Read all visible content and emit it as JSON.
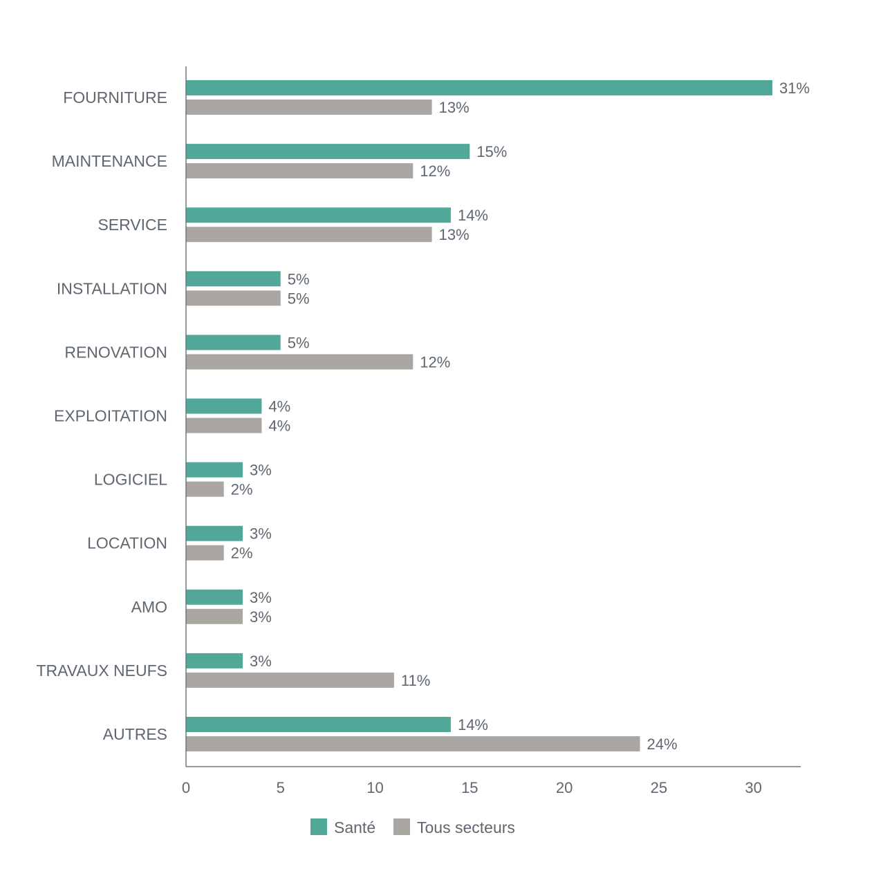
{
  "chart_data": {
    "type": "bar",
    "orientation": "horizontal",
    "title": "",
    "xlabel": "",
    "ylabel": "",
    "categories": [
      "FOURNITURE",
      "MAINTENANCE",
      "SERVICE",
      "INSTALLATION",
      "RENOVATION",
      "EXPLOITATION",
      "LOGICIEL",
      "LOCATION",
      "AMO",
      "TRAVAUX NEUFS",
      "AUTRES"
    ],
    "series": [
      {
        "name": "Santé",
        "color": "#52a898",
        "values": [
          31,
          15,
          14,
          5,
          5,
          4,
          3,
          3,
          3,
          3,
          14
        ],
        "labels": [
          "31%",
          "15%",
          "14%",
          "5%",
          "5%",
          "4%",
          "3%",
          "3%",
          "3%",
          "3%",
          "14%"
        ]
      },
      {
        "name": "Tous secteurs",
        "color": "#aaa6a2",
        "values": [
          13,
          12,
          13,
          5,
          12,
          4,
          2,
          2,
          3,
          11,
          24
        ],
        "labels": [
          "13%",
          "12%",
          "13%",
          "5%",
          "12%",
          "4%",
          "2%",
          "2%",
          "3%",
          "11%",
          "24%"
        ]
      }
    ],
    "xlim": [
      0,
      32.5
    ],
    "xticks": [
      0,
      5,
      10,
      15,
      20,
      25,
      30
    ],
    "xtick_labels": [
      "0",
      "5",
      "10",
      "15",
      "20",
      "25",
      "30"
    ],
    "grid": false,
    "legend": "bottom-center",
    "axis_color": "#6f767e"
  }
}
